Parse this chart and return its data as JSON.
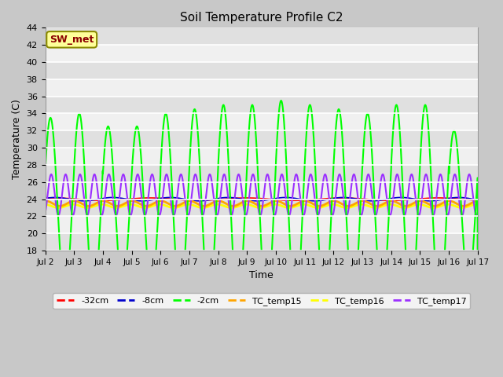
{
  "title": "Soil Temperature Profile C2",
  "xlabel": "Time",
  "ylabel": "Temperature (C)",
  "ylim": [
    18,
    44
  ],
  "xlim": [
    0,
    15
  ],
  "x_tick_labels": [
    "Jul 2",
    "Jul 3",
    "Jul 4",
    "Jul 5",
    "Jul 6",
    "Jul 7",
    "Jul 8",
    "Jul 9",
    "Jul 10",
    "Jul 11",
    "Jul 12",
    "Jul 13",
    "Jul 14",
    "Jul 15",
    "Jul 16",
    "Jul 17"
  ],
  "annotation_text": "SW_met",
  "annotation_color": "#8B0000",
  "annotation_bg": "#FFFF99",
  "annotation_border": "#8B8B00",
  "plot_bg_dark": "#E0E0E0",
  "plot_bg_light": "#F0F0F0",
  "fig_bg": "#C8C8C8",
  "series": {
    "neg32cm": {
      "color": "#FF0000",
      "lw": 1.2,
      "label": "-32cm"
    },
    "neg8cm": {
      "color": "#0000CC",
      "lw": 1.2,
      "label": "-8cm"
    },
    "neg2cm": {
      "color": "#00FF00",
      "lw": 1.5,
      "label": "-2cm"
    },
    "TC15": {
      "color": "#FFA500",
      "lw": 2.0,
      "label": "TC_temp15"
    },
    "TC16": {
      "color": "#FFFF00",
      "lw": 2.0,
      "label": "TC_temp16"
    },
    "TC17": {
      "color": "#9B30FF",
      "lw": 1.5,
      "label": "TC_temp17"
    }
  },
  "num_days": 15,
  "pts_per_day": 200,
  "figsize": [
    6.4,
    4.8
  ],
  "dpi": 100
}
